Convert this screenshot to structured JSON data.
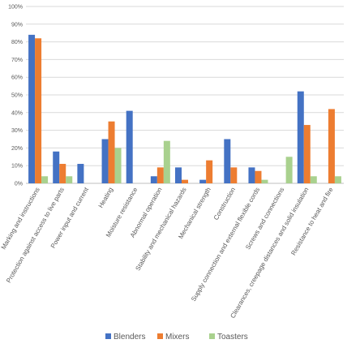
{
  "chart_data": {
    "type": "bar",
    "title": "",
    "xlabel": "",
    "ylabel": "",
    "ylim": [
      0,
      100
    ],
    "y_tick_step": 10,
    "y_tick_format": "percent",
    "grid": true,
    "legend_position": "bottom",
    "categories": [
      "Marking and instructions",
      "Protection against access to live parts",
      "Power input and current",
      "Heating",
      "Moisture resistance",
      "Abnormal operation",
      "Stability and mechanical hazards",
      "Mechanical strength",
      "Construction",
      "Supply connection and external flexible cords",
      "Screws and connections",
      "Clearances, creepage distances and solid insulation",
      "Resistance to heat and fire"
    ],
    "series": [
      {
        "name": "Blenders",
        "color": "#4472C4",
        "values": [
          84,
          18,
          11,
          25,
          41,
          4,
          9,
          2,
          25,
          9,
          0,
          52,
          0
        ]
      },
      {
        "name": "Mixers",
        "color": "#ED7D31",
        "values": [
          82,
          11,
          0,
          35,
          0,
          9,
          2,
          13,
          9,
          7,
          0,
          33,
          42
        ]
      },
      {
        "name": "Toasters",
        "color": "#A9D18E",
        "values": [
          4,
          4,
          0,
          20,
          0,
          24,
          0,
          0,
          0,
          2,
          15,
          4,
          4
        ]
      }
    ]
  }
}
